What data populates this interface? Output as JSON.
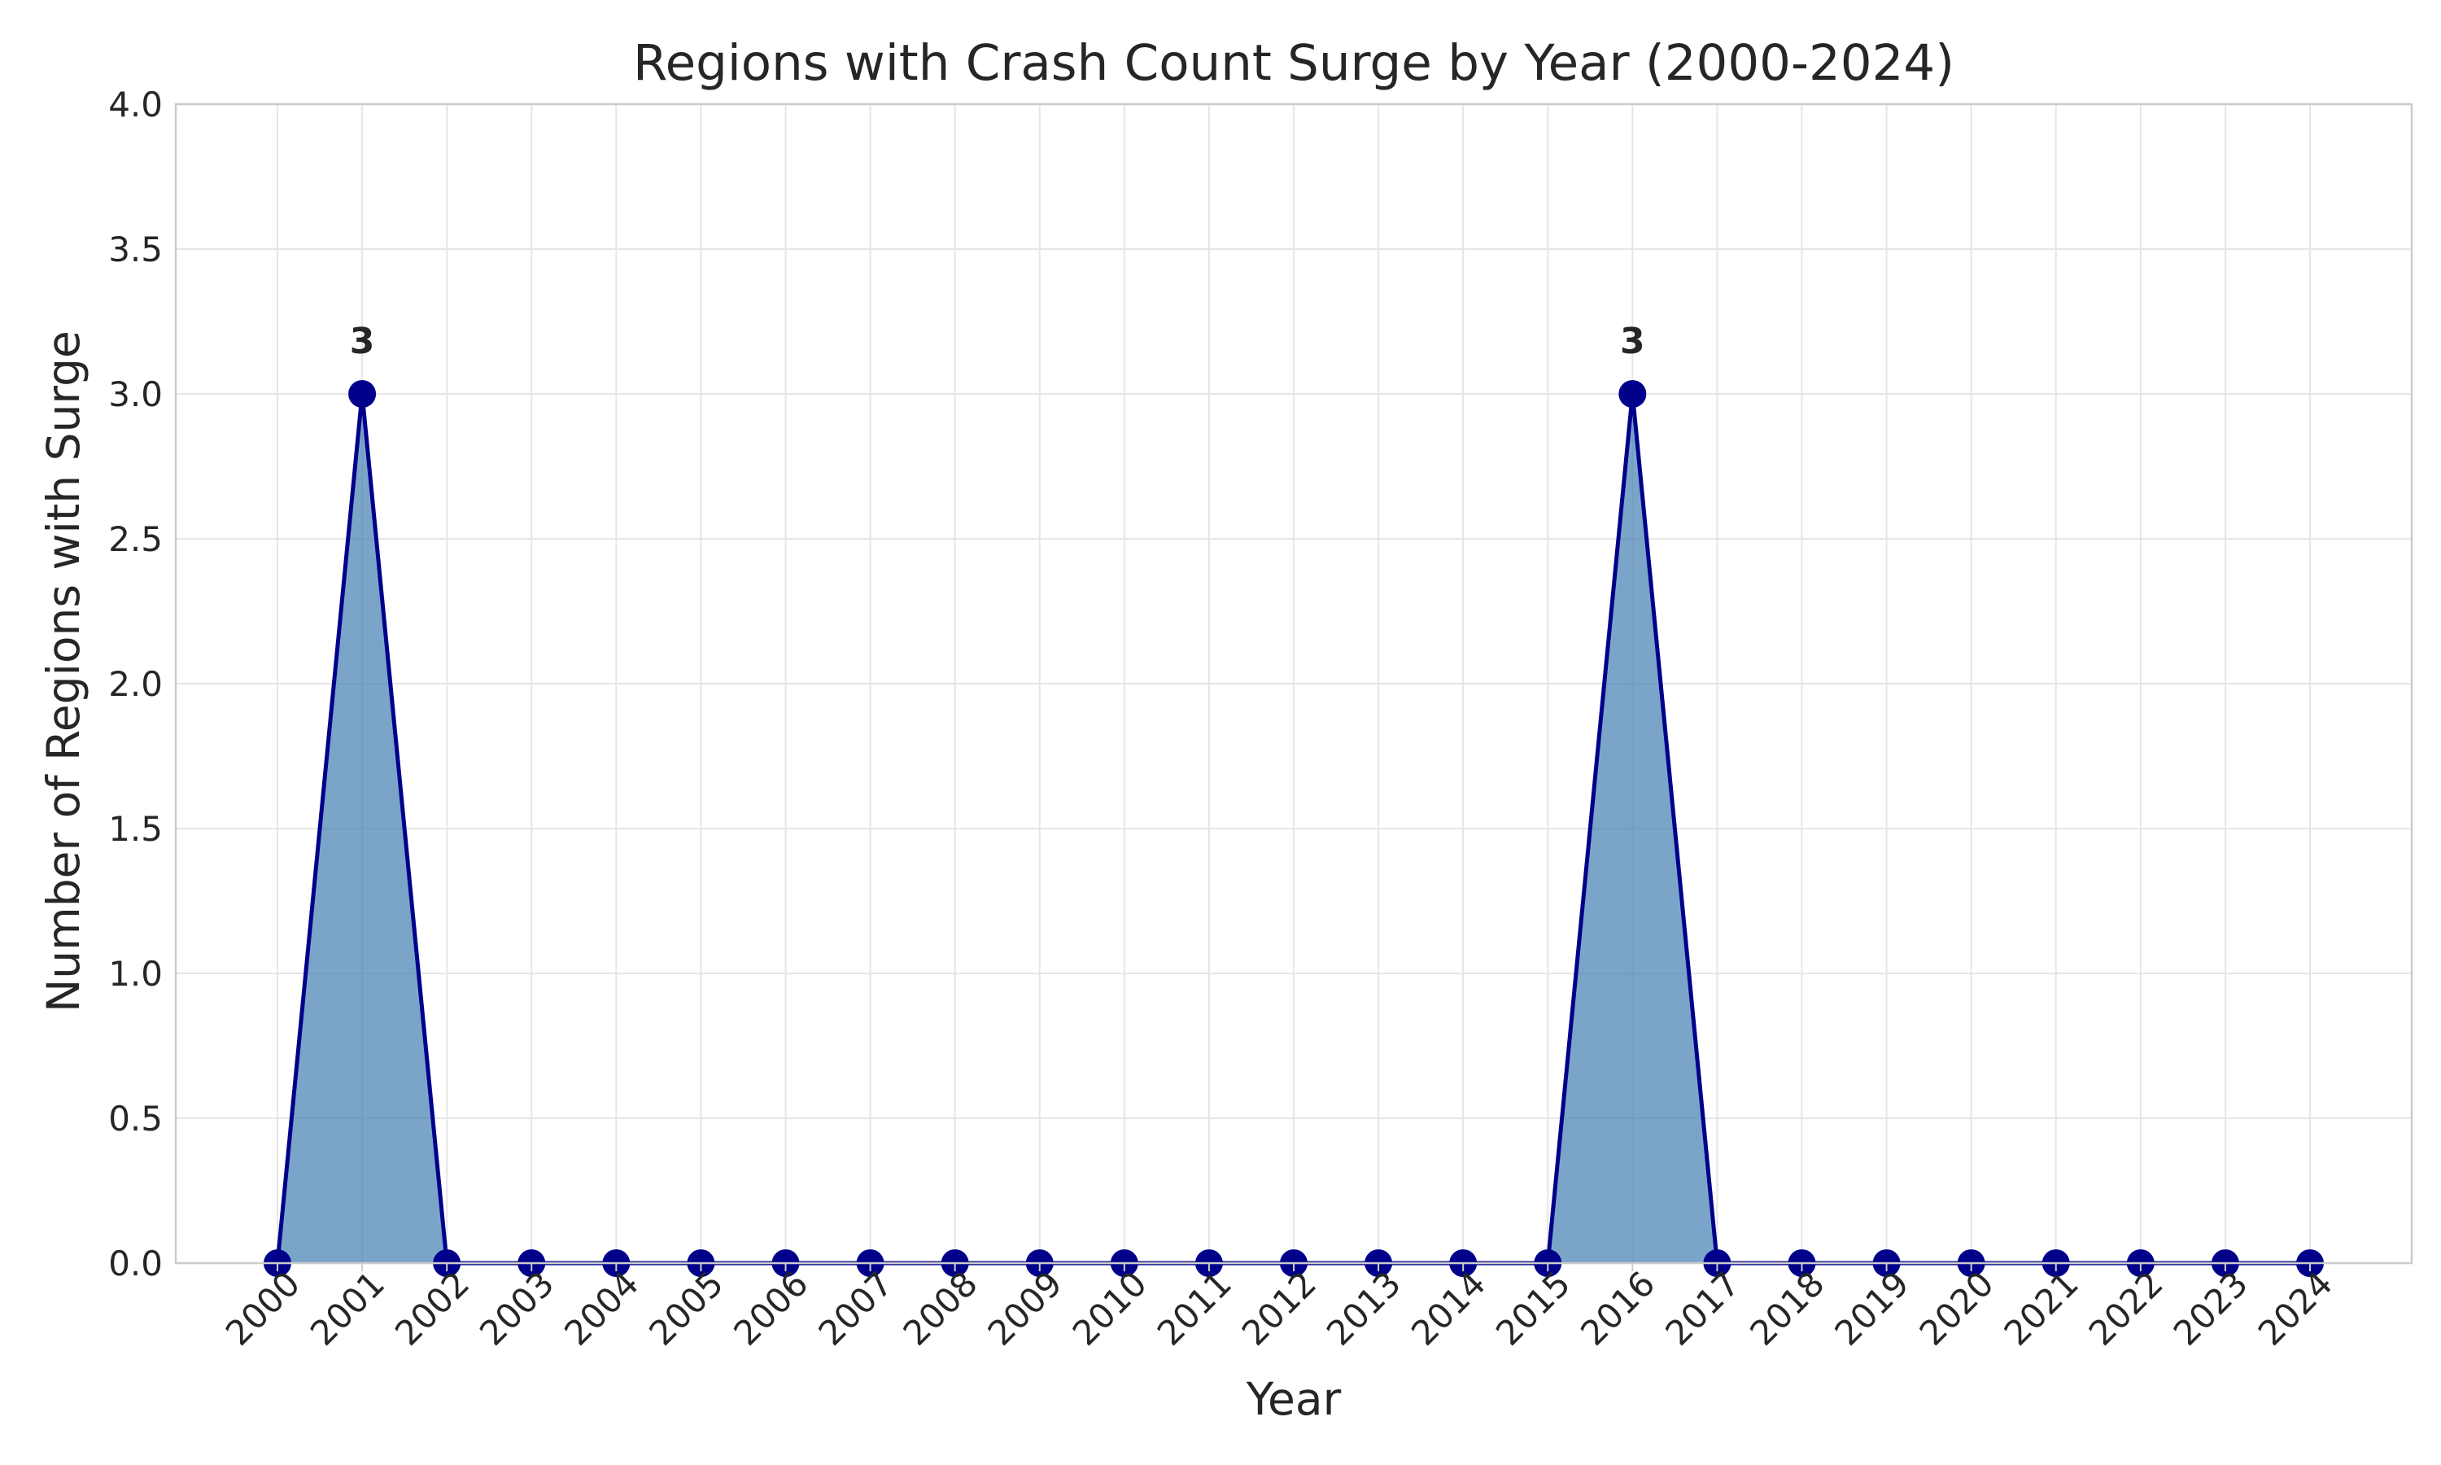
{
  "chart_data": {
    "type": "area",
    "title": "Regions with Crash Count Surge by Year (2000-2024)",
    "xlabel": "Year",
    "ylabel": "Number of Regions with Surge",
    "categories": [
      "2000",
      "2001",
      "2002",
      "2003",
      "2004",
      "2005",
      "2006",
      "2007",
      "2008",
      "2009",
      "2010",
      "2011",
      "2012",
      "2013",
      "2014",
      "2015",
      "2016",
      "2017",
      "2018",
      "2019",
      "2020",
      "2021",
      "2022",
      "2023",
      "2024"
    ],
    "values": [
      0,
      3,
      0,
      0,
      0,
      0,
      0,
      0,
      0,
      0,
      0,
      0,
      0,
      0,
      0,
      0,
      3,
      0,
      0,
      0,
      0,
      0,
      0,
      0,
      0
    ],
    "ylim": [
      0,
      4.0
    ],
    "y_ticks": [
      "0.0",
      "0.5",
      "1.0",
      "1.5",
      "2.0",
      "2.5",
      "3.0",
      "3.5",
      "4.0"
    ],
    "data_labels": [
      {
        "year": "2001",
        "value": 3,
        "text": "3"
      },
      {
        "year": "2016",
        "value": 3,
        "text": "3"
      }
    ],
    "grid": true,
    "x_tick_rotation": "45 degrees",
    "colors": {
      "line": "#00008b",
      "marker": "#00008b",
      "fill": "#4682b4",
      "grid": "#e6e6e6",
      "frame": "#cccccc",
      "text": "#262626"
    }
  }
}
